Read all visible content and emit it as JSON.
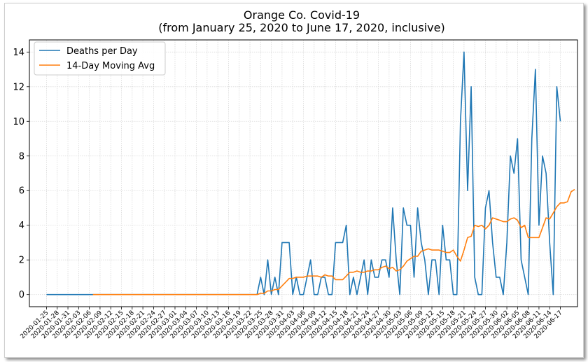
{
  "chart_data": {
    "type": "line",
    "title": "Orange Co. Covid-19",
    "subtitle": "(from January 25, 2020 to June 17, 2020, inclusive)",
    "xlabel": "",
    "ylabel": "",
    "ylim": [
      -0.7,
      14.7
    ],
    "yticks": [
      0,
      2,
      4,
      6,
      8,
      10,
      12,
      14
    ],
    "grid": true,
    "legend_position": "top-left",
    "x_tick_labels": [
      "2020-01-25",
      "2020-01-28",
      "2020-01-31",
      "2020-02-03",
      "2020-02-06",
      "2020-02-09",
      "2020-02-12",
      "2020-02-15",
      "2020-02-18",
      "2020-02-21",
      "2020-02-24",
      "2020-02-27",
      "2020-03-01",
      "2020-03-04",
      "2020-03-07",
      "2020-03-10",
      "2020-03-13",
      "2020-03-16",
      "2020-03-19",
      "2020-03-22",
      "2020-03-25",
      "2020-03-28",
      "2020-03-31",
      "2020-04-03",
      "2020-04-06",
      "2020-04-09",
      "2020-04-12",
      "2020-04-15",
      "2020-04-18",
      "2020-04-21",
      "2020-04-24",
      "2020-04-27",
      "2020-04-30",
      "2020-05-03",
      "2020-05-06",
      "2020-05-09",
      "2020-05-12",
      "2020-05-15",
      "2020-05-18",
      "2020-05-21",
      "2020-05-24",
      "2020-05-27",
      "2020-05-30",
      "2020-06-02",
      "2020-06-05",
      "2020-06-08",
      "2020-06-11",
      "2020-06-14",
      "2020-06-17"
    ],
    "series": [
      {
        "name": "Deaths per Day",
        "color": "#1f77b4",
        "x_start": "2020-01-25",
        "values": [
          0,
          0,
          0,
          0,
          0,
          0,
          0,
          0,
          0,
          0,
          0,
          0,
          0,
          0,
          0,
          0,
          0,
          0,
          0,
          0,
          0,
          0,
          0,
          0,
          0,
          0,
          0,
          0,
          0,
          0,
          0,
          0,
          0,
          0,
          0,
          0,
          0,
          0,
          0,
          0,
          0,
          0,
          0,
          0,
          0,
          0,
          0,
          0,
          0,
          0,
          0,
          0,
          0,
          0,
          0,
          0,
          0,
          0,
          0,
          0,
          1,
          0,
          2,
          0,
          1,
          0,
          3,
          3,
          3,
          0,
          1,
          0,
          0,
          1,
          2,
          0,
          0,
          1,
          1,
          0,
          0,
          3,
          3,
          3,
          4,
          0,
          1,
          0,
          1,
          2,
          0,
          2,
          1,
          1,
          2,
          2,
          1,
          5,
          2,
          0,
          5,
          4,
          4,
          1,
          5,
          3,
          2,
          0,
          2,
          2,
          0,
          4,
          2,
          2,
          0,
          0,
          10,
          14,
          6,
          12,
          1,
          0,
          0,
          5,
          6,
          3,
          1,
          1,
          0,
          3,
          8,
          7,
          9,
          2,
          1,
          0,
          9,
          13,
          4,
          8,
          7,
          3,
          0,
          12,
          10
        ]
      },
      {
        "name": "14-Day Moving Avg",
        "color": "#ff7f0e",
        "x_start": "2020-02-07",
        "values": [
          0,
          0,
          0,
          0,
          0,
          0,
          0,
          0,
          0,
          0,
          0,
          0,
          0,
          0,
          0,
          0,
          0,
          0,
          0,
          0,
          0,
          0,
          0,
          0,
          0,
          0,
          0,
          0,
          0,
          0,
          0,
          0,
          0,
          0,
          0,
          0,
          0,
          0,
          0,
          0,
          0,
          0,
          0,
          0,
          0,
          0,
          0,
          0.07,
          0.07,
          0.21,
          0.21,
          0.29,
          0.29,
          0.5,
          0.71,
          0.93,
          0.93,
          1.0,
          1.0,
          1.0,
          1.07,
          1.07,
          1.07,
          1.07,
          1.0,
          1.14,
          1.07,
          1.07,
          0.86,
          0.86,
          0.86,
          1.07,
          1.29,
          1.29,
          1.36,
          1.29,
          1.29,
          1.36,
          1.36,
          1.43,
          1.43,
          1.57,
          1.64,
          1.5,
          1.57,
          1.36,
          1.43,
          1.64,
          1.93,
          2.07,
          2.21,
          2.21,
          2.5,
          2.57,
          2.64,
          2.57,
          2.57,
          2.57,
          2.5,
          2.43,
          2.43,
          2.57,
          2.21,
          1.93,
          2.57,
          3.29,
          3.36,
          4.0,
          3.93,
          4.0,
          3.79,
          4.0,
          4.43,
          4.36,
          4.29,
          4.21,
          4.21,
          4.36,
          4.43,
          4.29,
          3.86,
          4.0,
          3.29,
          3.29,
          3.29,
          3.29,
          3.86,
          4.43,
          4.36,
          4.71,
          5.07,
          5.29,
          5.29,
          5.36,
          5.93,
          6.07
        ]
      }
    ]
  }
}
